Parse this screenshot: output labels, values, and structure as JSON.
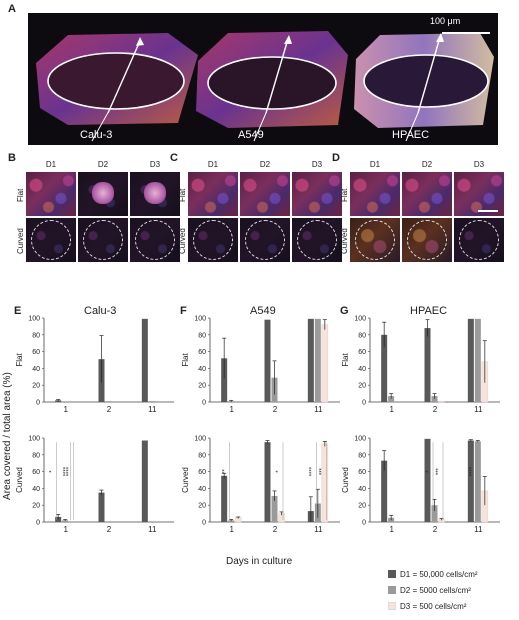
{
  "panel_a": {
    "letter": "A",
    "scale_bar": "100 μm",
    "cells": [
      "Calu-3",
      "A549",
      "HPAEC"
    ]
  },
  "micrograph_panels": [
    {
      "letter": "B",
      "days": [
        "D1",
        "D2",
        "D3"
      ],
      "rows": [
        "Flat",
        "Curved"
      ]
    },
    {
      "letter": "C",
      "days": [
        "D1",
        "D2",
        "D3"
      ],
      "rows": [
        "Flat",
        "Curved"
      ]
    },
    {
      "letter": "D",
      "days": [
        "D1",
        "D2",
        "D3"
      ],
      "rows": [
        "Flat",
        "Curved"
      ]
    }
  ],
  "y_axis_label": "Area covered / total area (%)",
  "x_axis_label": "Days in culture",
  "legend": [
    {
      "label": "D1 = 50,000 cells/cm²",
      "color": "#595959"
    },
    {
      "label": "D2 = 5000 cells/cm²",
      "color": "#9a9a9a"
    },
    {
      "label": "D3 = 500 cells/cm²",
      "color": "#f5e3dc"
    }
  ],
  "chart_data": [
    {
      "type": "bar",
      "panel": "E",
      "title": "Calu-3",
      "row": "Flat",
      "categories": [
        "1",
        "2",
        "11"
      ],
      "ylim": [
        0,
        100
      ],
      "yticks": [
        0,
        20,
        40,
        60,
        80,
        100
      ],
      "series": [
        {
          "name": "D1",
          "values": [
            2,
            51,
            99
          ],
          "errors": [
            1,
            28,
            0
          ]
        },
        {
          "name": "D2",
          "values": [
            0,
            1,
            1
          ],
          "errors": [
            0,
            0,
            0
          ]
        },
        {
          "name": "D3",
          "values": [
            0,
            0,
            0
          ],
          "errors": [
            0,
            0,
            0
          ]
        }
      ],
      "annotations": []
    },
    {
      "type": "bar",
      "panel": "E",
      "title": "",
      "row": "Curved",
      "categories": [
        "1",
        "2",
        "11"
      ],
      "ylim": [
        0,
        100
      ],
      "yticks": [
        0,
        20,
        40,
        60,
        80,
        100
      ],
      "series": [
        {
          "name": "D1",
          "values": [
            6,
            35,
            97
          ],
          "errors": [
            3,
            3,
            0
          ]
        },
        {
          "name": "D2",
          "values": [
            2,
            0,
            0
          ],
          "errors": [
            1,
            0,
            0
          ]
        },
        {
          "name": "D3",
          "values": [
            0,
            0,
            0
          ],
          "errors": [
            0,
            0,
            0
          ]
        }
      ],
      "annotations": [
        "*",
        "****",
        "****"
      ]
    },
    {
      "type": "bar",
      "panel": "F",
      "title": "A549",
      "row": "Flat",
      "categories": [
        "1",
        "2",
        "11"
      ],
      "ylim": [
        0,
        100
      ],
      "yticks": [
        0,
        20,
        40,
        60,
        80,
        100
      ],
      "series": [
        {
          "name": "D1",
          "values": [
            52,
            98,
            99
          ],
          "errors": [
            24,
            0,
            0
          ]
        },
        {
          "name": "D2",
          "values": [
            1,
            29,
            99
          ],
          "errors": [
            1,
            20,
            0
          ]
        },
        {
          "name": "D3",
          "values": [
            0,
            0,
            92
          ],
          "errors": [
            0,
            0,
            6
          ]
        }
      ],
      "annotations": []
    },
    {
      "type": "bar",
      "panel": "F",
      "title": "",
      "row": "Curved",
      "categories": [
        "1",
        "2",
        "11"
      ],
      "ylim": [
        0,
        100
      ],
      "yticks": [
        0,
        20,
        40,
        60,
        80,
        100
      ],
      "series": [
        {
          "name": "D1",
          "values": [
            55,
            95,
            13
          ],
          "errors": [
            3,
            2,
            17
          ]
        },
        {
          "name": "D2",
          "values": [
            2,
            31,
            22
          ],
          "errors": [
            1,
            6,
            17
          ]
        },
        {
          "name": "D3",
          "values": [
            5,
            10,
            93
          ],
          "errors": [
            1,
            2,
            3
          ]
        }
      ],
      "annotations": [
        "**",
        "*",
        "****",
        "***"
      ]
    },
    {
      "type": "bar",
      "panel": "G",
      "title": "HPAEC",
      "row": "Flat",
      "categories": [
        "1",
        "2",
        "11"
      ],
      "ylim": [
        0,
        100
      ],
      "yticks": [
        0,
        20,
        40,
        60,
        80,
        100
      ],
      "series": [
        {
          "name": "D1",
          "values": [
            80,
            88,
            99
          ],
          "errors": [
            15,
            10,
            0
          ]
        },
        {
          "name": "D2",
          "values": [
            7,
            7,
            99
          ],
          "errors": [
            3,
            3,
            0
          ]
        },
        {
          "name": "D3",
          "values": [
            0,
            1,
            48
          ],
          "errors": [
            0,
            0,
            25
          ]
        }
      ],
      "annotations": []
    },
    {
      "type": "bar",
      "panel": "G",
      "title": "",
      "row": "Curved",
      "categories": [
        "1",
        "2",
        "11"
      ],
      "ylim": [
        0,
        100
      ],
      "yticks": [
        0,
        20,
        40,
        60,
        80,
        100
      ],
      "series": [
        {
          "name": "D1",
          "values": [
            73,
            99,
            97
          ],
          "errors": [
            12,
            0,
            1
          ]
        },
        {
          "name": "D2",
          "values": [
            5,
            20,
            96
          ],
          "errors": [
            3,
            7,
            1
          ]
        },
        {
          "name": "D3",
          "values": [
            0,
            3,
            37
          ],
          "errors": [
            0,
            1,
            17
          ]
        }
      ],
      "annotations": [
        "*",
        "***",
        "****"
      ]
    }
  ]
}
